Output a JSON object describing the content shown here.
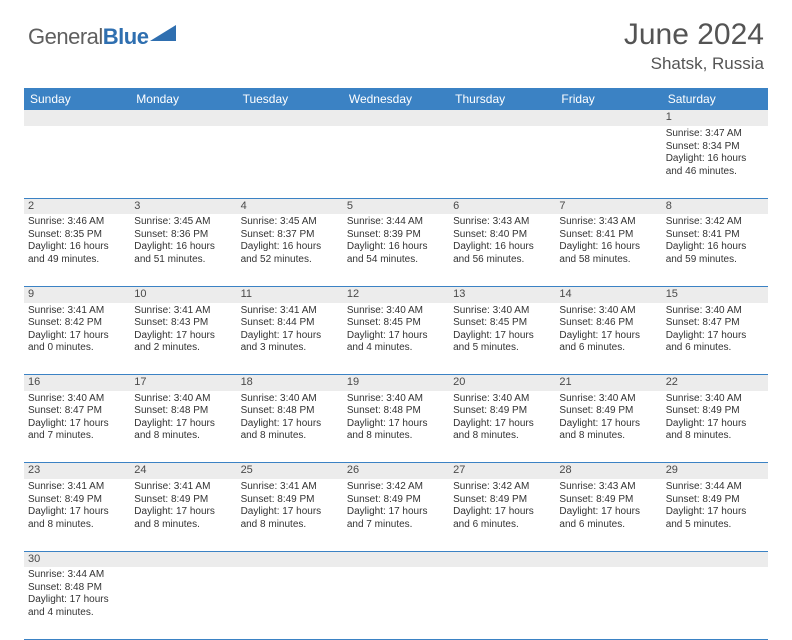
{
  "brand": {
    "part1": "General",
    "part2": "Blue"
  },
  "title": "June 2024",
  "location": "Shatsk, Russia",
  "colors": {
    "header_bg": "#3b82c4",
    "header_text": "#ffffff",
    "daynum_bg": "#ececec",
    "border": "#3b82c4",
    "logo_gray": "#5f5f5f",
    "logo_blue": "#2f6fb0",
    "title_color": "#545454"
  },
  "weekdays": [
    "Sunday",
    "Monday",
    "Tuesday",
    "Wednesday",
    "Thursday",
    "Friday",
    "Saturday"
  ],
  "weeks": [
    [
      null,
      null,
      null,
      null,
      null,
      null,
      {
        "n": "1",
        "sr": "Sunrise: 3:47 AM",
        "ss": "Sunset: 8:34 PM",
        "d1": "Daylight: 16 hours",
        "d2": "and 46 minutes."
      }
    ],
    [
      {
        "n": "2",
        "sr": "Sunrise: 3:46 AM",
        "ss": "Sunset: 8:35 PM",
        "d1": "Daylight: 16 hours",
        "d2": "and 49 minutes."
      },
      {
        "n": "3",
        "sr": "Sunrise: 3:45 AM",
        "ss": "Sunset: 8:36 PM",
        "d1": "Daylight: 16 hours",
        "d2": "and 51 minutes."
      },
      {
        "n": "4",
        "sr": "Sunrise: 3:45 AM",
        "ss": "Sunset: 8:37 PM",
        "d1": "Daylight: 16 hours",
        "d2": "and 52 minutes."
      },
      {
        "n": "5",
        "sr": "Sunrise: 3:44 AM",
        "ss": "Sunset: 8:39 PM",
        "d1": "Daylight: 16 hours",
        "d2": "and 54 minutes."
      },
      {
        "n": "6",
        "sr": "Sunrise: 3:43 AM",
        "ss": "Sunset: 8:40 PM",
        "d1": "Daylight: 16 hours",
        "d2": "and 56 minutes."
      },
      {
        "n": "7",
        "sr": "Sunrise: 3:43 AM",
        "ss": "Sunset: 8:41 PM",
        "d1": "Daylight: 16 hours",
        "d2": "and 58 minutes."
      },
      {
        "n": "8",
        "sr": "Sunrise: 3:42 AM",
        "ss": "Sunset: 8:41 PM",
        "d1": "Daylight: 16 hours",
        "d2": "and 59 minutes."
      }
    ],
    [
      {
        "n": "9",
        "sr": "Sunrise: 3:41 AM",
        "ss": "Sunset: 8:42 PM",
        "d1": "Daylight: 17 hours",
        "d2": "and 0 minutes."
      },
      {
        "n": "10",
        "sr": "Sunrise: 3:41 AM",
        "ss": "Sunset: 8:43 PM",
        "d1": "Daylight: 17 hours",
        "d2": "and 2 minutes."
      },
      {
        "n": "11",
        "sr": "Sunrise: 3:41 AM",
        "ss": "Sunset: 8:44 PM",
        "d1": "Daylight: 17 hours",
        "d2": "and 3 minutes."
      },
      {
        "n": "12",
        "sr": "Sunrise: 3:40 AM",
        "ss": "Sunset: 8:45 PM",
        "d1": "Daylight: 17 hours",
        "d2": "and 4 minutes."
      },
      {
        "n": "13",
        "sr": "Sunrise: 3:40 AM",
        "ss": "Sunset: 8:45 PM",
        "d1": "Daylight: 17 hours",
        "d2": "and 5 minutes."
      },
      {
        "n": "14",
        "sr": "Sunrise: 3:40 AM",
        "ss": "Sunset: 8:46 PM",
        "d1": "Daylight: 17 hours",
        "d2": "and 6 minutes."
      },
      {
        "n": "15",
        "sr": "Sunrise: 3:40 AM",
        "ss": "Sunset: 8:47 PM",
        "d1": "Daylight: 17 hours",
        "d2": "and 6 minutes."
      }
    ],
    [
      {
        "n": "16",
        "sr": "Sunrise: 3:40 AM",
        "ss": "Sunset: 8:47 PM",
        "d1": "Daylight: 17 hours",
        "d2": "and 7 minutes."
      },
      {
        "n": "17",
        "sr": "Sunrise: 3:40 AM",
        "ss": "Sunset: 8:48 PM",
        "d1": "Daylight: 17 hours",
        "d2": "and 8 minutes."
      },
      {
        "n": "18",
        "sr": "Sunrise: 3:40 AM",
        "ss": "Sunset: 8:48 PM",
        "d1": "Daylight: 17 hours",
        "d2": "and 8 minutes."
      },
      {
        "n": "19",
        "sr": "Sunrise: 3:40 AM",
        "ss": "Sunset: 8:48 PM",
        "d1": "Daylight: 17 hours",
        "d2": "and 8 minutes."
      },
      {
        "n": "20",
        "sr": "Sunrise: 3:40 AM",
        "ss": "Sunset: 8:49 PM",
        "d1": "Daylight: 17 hours",
        "d2": "and 8 minutes."
      },
      {
        "n": "21",
        "sr": "Sunrise: 3:40 AM",
        "ss": "Sunset: 8:49 PM",
        "d1": "Daylight: 17 hours",
        "d2": "and 8 minutes."
      },
      {
        "n": "22",
        "sr": "Sunrise: 3:40 AM",
        "ss": "Sunset: 8:49 PM",
        "d1": "Daylight: 17 hours",
        "d2": "and 8 minutes."
      }
    ],
    [
      {
        "n": "23",
        "sr": "Sunrise: 3:41 AM",
        "ss": "Sunset: 8:49 PM",
        "d1": "Daylight: 17 hours",
        "d2": "and 8 minutes."
      },
      {
        "n": "24",
        "sr": "Sunrise: 3:41 AM",
        "ss": "Sunset: 8:49 PM",
        "d1": "Daylight: 17 hours",
        "d2": "and 8 minutes."
      },
      {
        "n": "25",
        "sr": "Sunrise: 3:41 AM",
        "ss": "Sunset: 8:49 PM",
        "d1": "Daylight: 17 hours",
        "d2": "and 8 minutes."
      },
      {
        "n": "26",
        "sr": "Sunrise: 3:42 AM",
        "ss": "Sunset: 8:49 PM",
        "d1": "Daylight: 17 hours",
        "d2": "and 7 minutes."
      },
      {
        "n": "27",
        "sr": "Sunrise: 3:42 AM",
        "ss": "Sunset: 8:49 PM",
        "d1": "Daylight: 17 hours",
        "d2": "and 6 minutes."
      },
      {
        "n": "28",
        "sr": "Sunrise: 3:43 AM",
        "ss": "Sunset: 8:49 PM",
        "d1": "Daylight: 17 hours",
        "d2": "and 6 minutes."
      },
      {
        "n": "29",
        "sr": "Sunrise: 3:44 AM",
        "ss": "Sunset: 8:49 PM",
        "d1": "Daylight: 17 hours",
        "d2": "and 5 minutes."
      }
    ],
    [
      {
        "n": "30",
        "sr": "Sunrise: 3:44 AM",
        "ss": "Sunset: 8:48 PM",
        "d1": "Daylight: 17 hours",
        "d2": "and 4 minutes."
      },
      null,
      null,
      null,
      null,
      null,
      null
    ]
  ]
}
